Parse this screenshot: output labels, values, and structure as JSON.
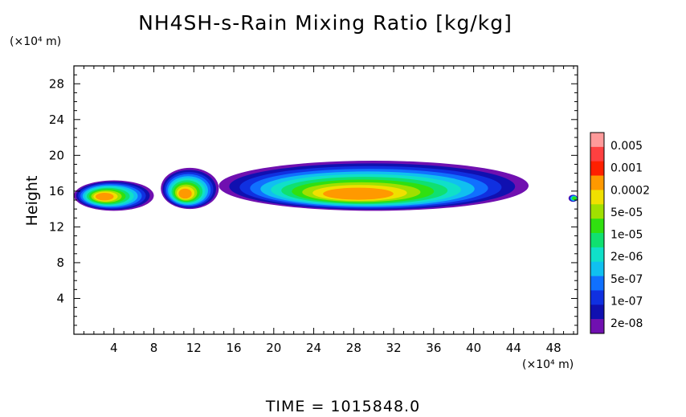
{
  "chart_data": {
    "type": "heatmap",
    "title": "NH4SH-s-Rain Mixing Ratio [kg/kg]",
    "xlabel": "",
    "ylabel": "Height",
    "x_unit": "(×10⁴ m)",
    "y_unit": "(×10⁴ m)",
    "xlim": [
      0,
      50.4
    ],
    "ylim": [
      0,
      30
    ],
    "x_ticks": [
      4,
      8,
      12,
      16,
      20,
      24,
      28,
      32,
      36,
      40,
      44,
      48
    ],
    "y_ticks": [
      4,
      8,
      12,
      16,
      20,
      24,
      28
    ],
    "colorbar": {
      "labels": [
        "0.005",
        "0.001",
        "0.0002",
        "5e-05",
        "1e-05",
        "2e-06",
        "5e-07",
        "1e-07",
        "2e-08"
      ],
      "colors": [
        "#ff9a9a",
        "#ff4040",
        "#ff2000",
        "#ff9900",
        "#f0e000",
        "#a0e000",
        "#30e010",
        "#10e070",
        "#10e0c8",
        "#10c0f0",
        "#1070ff",
        "#1030e0",
        "#1010b0",
        "#7010b0"
      ]
    },
    "regions": [
      {
        "x": [
          0.0,
          8.0
        ],
        "y": [
          13.8,
          17.2
        ],
        "peak_level": "0.0002",
        "peak_x": 2.8,
        "peak_y": 15.4
      },
      {
        "x": [
          8.7,
          14.5
        ],
        "y": [
          14.0,
          18.6
        ],
        "peak_level": "0.0002",
        "peak_x": 11.0,
        "peak_y": 15.6
      },
      {
        "x": [
          14.5,
          45.5
        ],
        "y": [
          13.8,
          19.4
        ],
        "peak_level": "0.0002",
        "peak_x": 28.0,
        "peak_y": 15.5
      },
      {
        "x": [
          49.5,
          50.4
        ],
        "y": [
          14.8,
          15.6
        ],
        "peak_level": "2e-06",
        "peak_x": 50.2,
        "peak_y": 15.2
      }
    ]
  },
  "time_label": "TIME = 1015848.0"
}
